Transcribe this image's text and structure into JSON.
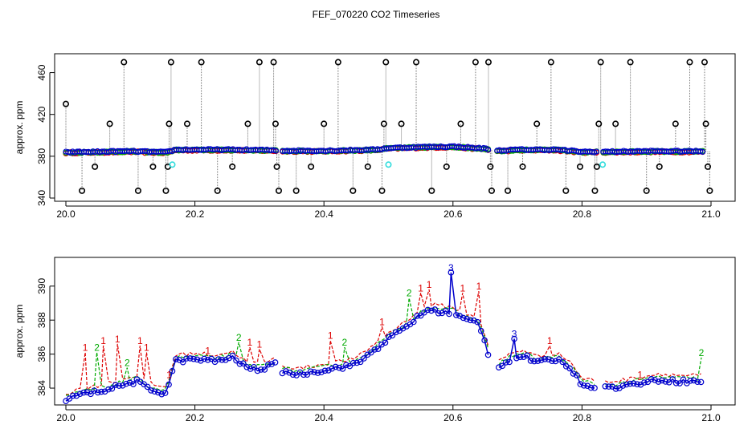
{
  "title": "FEF_070220  CO2 Timeseries",
  "chart_data": [
    {
      "type": "scatter",
      "ylabel": "approx. ppm",
      "xlim": [
        20.0,
        21.0
      ],
      "ylim": [
        340,
        475
      ],
      "xticks": [
        "20.0",
        "20.2",
        "20.4",
        "20.6",
        "20.8",
        "21.0"
      ],
      "yticks": [
        "340",
        "380",
        "420",
        "460"
      ],
      "gaps": [
        [
          20.328,
          20.335
        ],
        [
          20.655,
          20.668
        ],
        [
          20.825,
          20.832
        ]
      ],
      "baseline": [
        [
          20.0,
          383.5
        ],
        [
          20.05,
          384.0
        ],
        [
          20.1,
          384.5
        ],
        [
          20.155,
          383.5
        ],
        [
          20.17,
          386.0
        ],
        [
          20.25,
          386.0
        ],
        [
          20.32,
          385.5
        ],
        [
          20.335,
          385.0
        ],
        [
          20.4,
          385.0
        ],
        [
          20.48,
          386.0
        ],
        [
          20.5,
          387.5
        ],
        [
          20.55,
          388.5
        ],
        [
          20.6,
          389.0
        ],
        [
          20.65,
          387.0
        ],
        [
          20.668,
          385.0
        ],
        [
          20.7,
          386.0
        ],
        [
          20.76,
          386.0
        ],
        [
          20.8,
          384.0
        ],
        [
          20.832,
          384.0
        ],
        [
          20.9,
          384.5
        ],
        [
          20.99,
          384.5
        ]
      ],
      "outliers": [
        [
          20.0,
          430
        ],
        [
          20.025,
          347
        ],
        [
          20.045,
          370
        ],
        [
          20.068,
          411
        ],
        [
          20.09,
          470
        ],
        [
          20.112,
          347
        ],
        [
          20.135,
          370
        ],
        [
          20.155,
          347
        ],
        [
          20.158,
          370
        ],
        [
          20.16,
          411
        ],
        [
          20.163,
          470
        ],
        [
          20.188,
          411
        ],
        [
          20.21,
          470
        ],
        [
          20.235,
          347
        ],
        [
          20.258,
          370
        ],
        [
          20.282,
          411
        ],
        [
          20.3,
          470
        ],
        [
          20.322,
          470
        ],
        [
          20.325,
          411
        ],
        [
          20.327,
          370
        ],
        [
          20.33,
          347
        ],
        [
          20.357,
          347
        ],
        [
          20.38,
          370
        ],
        [
          20.4,
          411
        ],
        [
          20.422,
          470
        ],
        [
          20.445,
          347
        ],
        [
          20.468,
          370
        ],
        [
          20.49,
          347
        ],
        [
          20.493,
          411
        ],
        [
          20.496,
          470
        ],
        [
          20.52,
          411
        ],
        [
          20.543,
          470
        ],
        [
          20.567,
          347
        ],
        [
          20.59,
          370
        ],
        [
          20.612,
          411
        ],
        [
          20.635,
          470
        ],
        [
          20.655,
          470
        ],
        [
          20.658,
          370
        ],
        [
          20.66,
          347
        ],
        [
          20.685,
          347
        ],
        [
          20.708,
          370
        ],
        [
          20.73,
          411
        ],
        [
          20.752,
          470
        ],
        [
          20.775,
          347
        ],
        [
          20.797,
          370
        ],
        [
          20.82,
          347
        ],
        [
          20.823,
          370
        ],
        [
          20.826,
          411
        ],
        [
          20.829,
          470
        ],
        [
          20.852,
          411
        ],
        [
          20.875,
          470
        ],
        [
          20.9,
          347
        ],
        [
          20.92,
          370
        ],
        [
          20.945,
          411
        ],
        [
          20.967,
          470
        ],
        [
          20.99,
          470
        ],
        [
          20.992,
          411
        ],
        [
          20.995,
          370
        ],
        [
          20.998,
          347
        ]
      ],
      "cyan_points": [
        [
          20.165,
          372
        ],
        [
          20.5,
          372
        ],
        [
          20.832,
          372
        ]
      ]
    },
    {
      "type": "line",
      "ylabel": "approx. ppm",
      "xlim": [
        20.0,
        21.0
      ],
      "ylim": [
        383.2,
        391.5
      ],
      "xticks": [
        "20.0",
        "20.2",
        "20.4",
        "20.6",
        "20.8",
        "21.0"
      ],
      "yticks": [
        "384",
        "386",
        "388",
        "390"
      ],
      "gaps": [
        [
          20.328,
          20.335
        ],
        [
          20.655,
          20.668
        ],
        [
          20.825,
          20.832
        ]
      ],
      "series": [
        {
          "name": "1",
          "color": "#dd0000"
        },
        {
          "name": "2",
          "color": "#00aa00"
        },
        {
          "name": "3",
          "color": "#0000cc"
        }
      ],
      "base": [
        [
          20.0,
          383.3
        ],
        [
          20.02,
          383.6
        ],
        [
          20.05,
          383.8
        ],
        [
          20.08,
          384.1
        ],
        [
          20.11,
          384.4
        ],
        [
          20.13,
          383.9
        ],
        [
          20.155,
          383.7
        ],
        [
          20.17,
          385.6
        ],
        [
          20.2,
          385.7
        ],
        [
          20.23,
          385.6
        ],
        [
          20.26,
          385.8
        ],
        [
          20.28,
          385.2
        ],
        [
          20.3,
          385.1
        ],
        [
          20.325,
          385.4
        ],
        [
          20.335,
          385.0
        ],
        [
          20.36,
          384.8
        ],
        [
          20.39,
          385.0
        ],
        [
          20.42,
          385.2
        ],
        [
          20.45,
          385.4
        ],
        [
          20.48,
          386.3
        ],
        [
          20.5,
          386.9
        ],
        [
          20.52,
          387.4
        ],
        [
          20.54,
          388.0
        ],
        [
          20.56,
          388.6
        ],
        [
          20.58,
          388.5
        ],
        [
          20.6,
          388.4
        ],
        [
          20.62,
          388.0
        ],
        [
          20.64,
          387.9
        ],
        [
          20.655,
          386.0
        ],
        [
          20.668,
          385.2
        ],
        [
          20.69,
          385.7
        ],
        [
          20.71,
          385.9
        ],
        [
          20.73,
          385.5
        ],
        [
          20.76,
          385.7
        ],
        [
          20.78,
          385.3
        ],
        [
          20.8,
          384.2
        ],
        [
          20.825,
          384.1
        ],
        [
          20.832,
          384.0
        ],
        [
          20.86,
          384.1
        ],
        [
          20.89,
          384.3
        ],
        [
          20.92,
          384.5
        ],
        [
          20.95,
          384.4
        ],
        [
          20.985,
          384.4
        ]
      ],
      "spikes": [
        {
          "series": "1",
          "x": 20.03,
          "y": 386.1
        },
        {
          "series": "2",
          "x": 20.048,
          "y": 386.1
        },
        {
          "series": "1",
          "x": 20.058,
          "y": 386.5
        },
        {
          "series": "1",
          "x": 20.08,
          "y": 386.6
        },
        {
          "series": "2",
          "x": 20.095,
          "y": 385.2
        },
        {
          "series": "1",
          "x": 20.115,
          "y": 386.5
        },
        {
          "series": "1",
          "x": 20.125,
          "y": 386.1
        },
        {
          "series": "1",
          "x": 20.16,
          "y": 384.5
        },
        {
          "series": "1",
          "x": 20.22,
          "y": 385.9
        },
        {
          "series": "2",
          "x": 20.268,
          "y": 386.7
        },
        {
          "series": "1",
          "x": 20.285,
          "y": 386.4
        },
        {
          "series": "1",
          "x": 20.3,
          "y": 386.3
        },
        {
          "series": "1",
          "x": 20.41,
          "y": 386.8
        },
        {
          "series": "2",
          "x": 20.432,
          "y": 386.4
        },
        {
          "series": "1",
          "x": 20.49,
          "y": 387.6
        },
        {
          "series": "2",
          "x": 20.532,
          "y": 389.3
        },
        {
          "series": "1",
          "x": 20.55,
          "y": 389.6
        },
        {
          "series": "1",
          "x": 20.563,
          "y": 389.8
        },
        {
          "series": "3",
          "x": 20.597,
          "y": 390.8
        },
        {
          "series": "1",
          "x": 20.615,
          "y": 389.6
        },
        {
          "series": "1",
          "x": 20.64,
          "y": 389.7
        },
        {
          "series": "3",
          "x": 20.695,
          "y": 386.9
        },
        {
          "series": "1",
          "x": 20.75,
          "y": 386.5
        },
        {
          "series": "1",
          "x": 20.89,
          "y": 384.5
        },
        {
          "series": "2",
          "x": 20.985,
          "y": 385.8
        }
      ]
    }
  ]
}
